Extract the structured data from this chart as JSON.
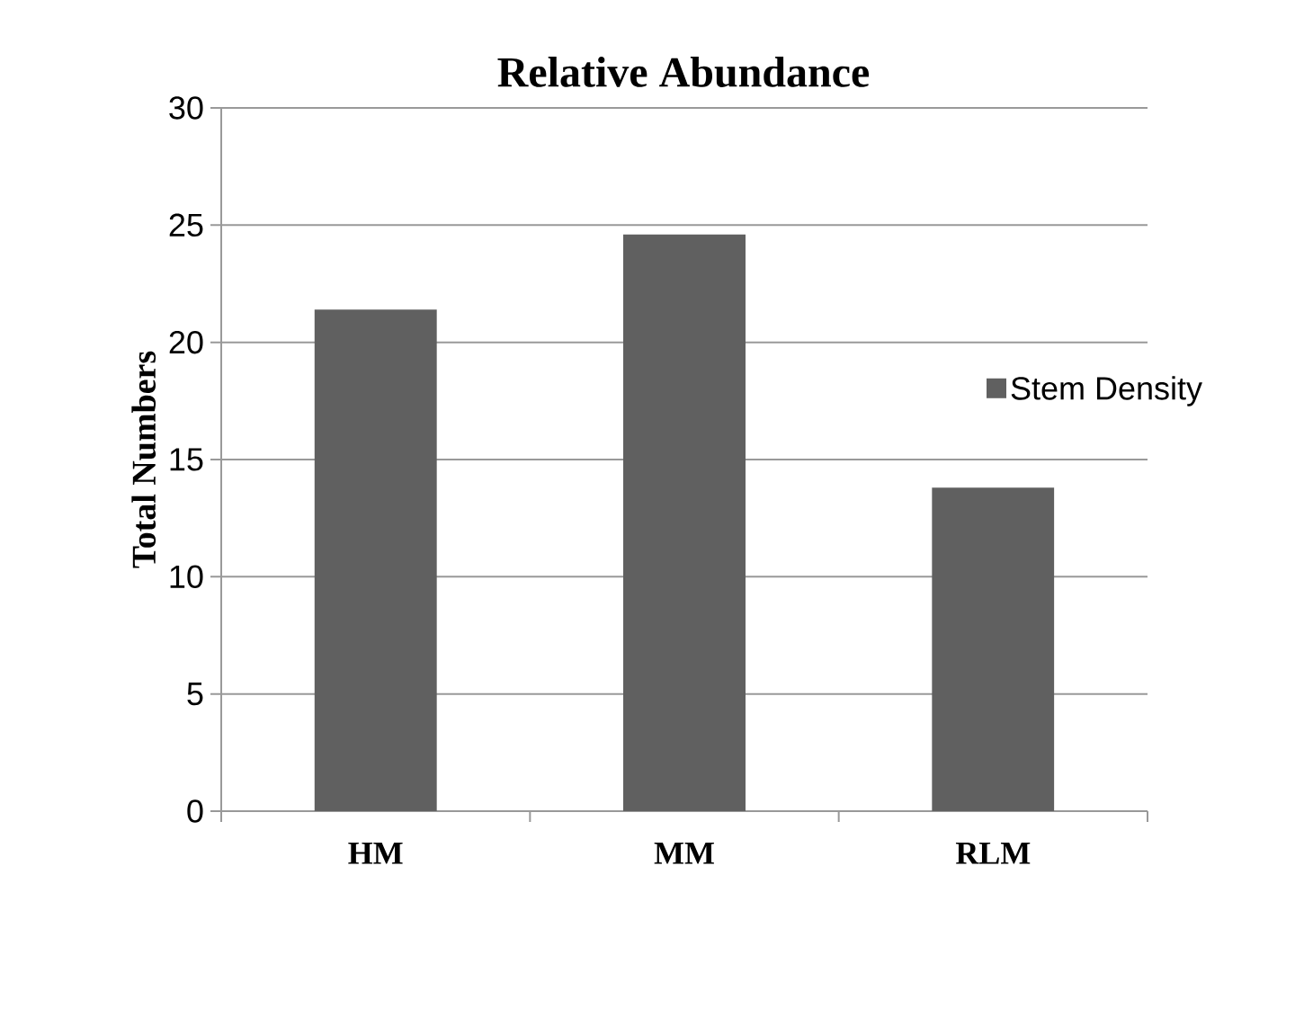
{
  "chart_data": {
    "type": "bar",
    "title": "Relative Abundance",
    "ylabel": "Total Numbers",
    "categories": [
      "HM",
      "MM",
      "RLM"
    ],
    "series": [
      {
        "name": "Stem Density",
        "color": "#606060",
        "values": [
          21.4,
          24.6,
          13.8
        ]
      }
    ],
    "ylim": [
      0,
      30
    ],
    "yticks": [
      0,
      5,
      10,
      15,
      20,
      25,
      30
    ],
    "grid": "y",
    "legend": "right"
  }
}
